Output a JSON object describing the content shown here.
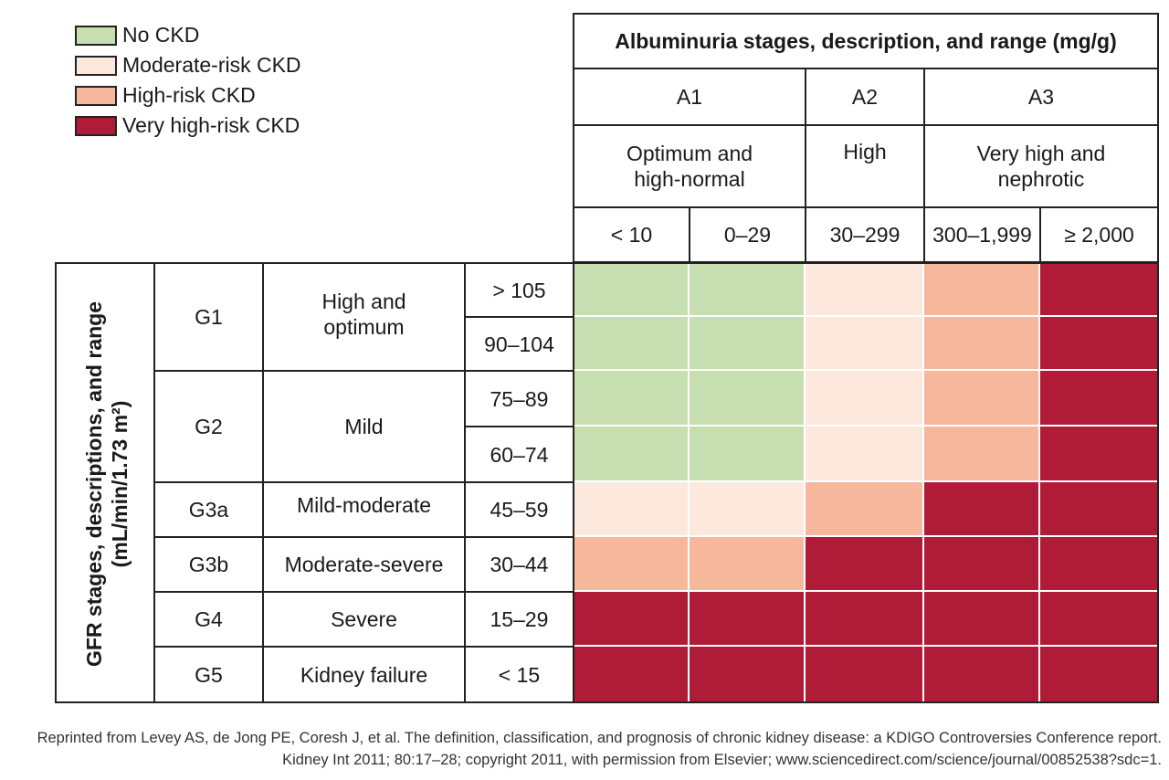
{
  "colors": {
    "no_ckd": "#c7dfb0",
    "moderate": "#fde8de",
    "high": "#f6b79c",
    "very_high": "#b01c37"
  },
  "legend": [
    {
      "label": "No CKD",
      "level": "no_ckd"
    },
    {
      "label": "Moderate-risk CKD",
      "level": "moderate"
    },
    {
      "label": "High-risk CKD",
      "level": "high"
    },
    {
      "label": "Very high-risk CKD",
      "level": "very_high"
    }
  ],
  "albuminuria": {
    "title": "Albuminuria stages, description, and range (mg/g)",
    "stages": [
      {
        "name": "A1",
        "description": "Optimum and\nhigh-normal"
      },
      {
        "name": "A2",
        "description": "High"
      },
      {
        "name": "A3",
        "description": "Very high and\nnephrotic"
      }
    ],
    "ranges": [
      "< 10",
      "0–29",
      "30–299",
      "300–1,999",
      "≥ 2,000"
    ]
  },
  "gfr": {
    "title": "GFR stages, descriptions, and range\n(mL/min/1.73 m²)",
    "stages": [
      {
        "name": "G1",
        "description": "High and\noptimum"
      },
      {
        "name": "G2",
        "description": "Mild"
      },
      {
        "name": "G3a",
        "description": "Mild-moderate"
      },
      {
        "name": "G3b",
        "description": "Moderate-severe"
      },
      {
        "name": "G4",
        "description": "Severe"
      },
      {
        "name": "G5",
        "description": "Kidney failure"
      }
    ],
    "ranges": [
      "> 105",
      "90–104",
      "75–89",
      "60–74",
      "45–59",
      "30–44",
      "15–29",
      "< 15"
    ]
  },
  "risk_grid": [
    [
      "no_ckd",
      "no_ckd",
      "moderate",
      "high",
      "very_high"
    ],
    [
      "no_ckd",
      "no_ckd",
      "moderate",
      "high",
      "very_high"
    ],
    [
      "no_ckd",
      "no_ckd",
      "moderate",
      "high",
      "very_high"
    ],
    [
      "no_ckd",
      "no_ckd",
      "moderate",
      "high",
      "very_high"
    ],
    [
      "moderate",
      "moderate",
      "high",
      "very_high",
      "very_high"
    ],
    [
      "high",
      "high",
      "very_high",
      "very_high",
      "very_high"
    ],
    [
      "very_high",
      "very_high",
      "very_high",
      "very_high",
      "very_high"
    ],
    [
      "very_high",
      "very_high",
      "very_high",
      "very_high",
      "very_high"
    ]
  ],
  "footer": {
    "line1": "Reprinted from Levey AS, de Jong PE, Coresh J, et al. The definition, classification, and prognosis of chronic kidney disease: a KDIGO Controversies Conference report.",
    "line2": "Kidney Int 2011; 80:17–28; copyright 2011, with permission from Elsevier; www.sciencedirect.com/science/journal/00852538?sdc=1."
  }
}
